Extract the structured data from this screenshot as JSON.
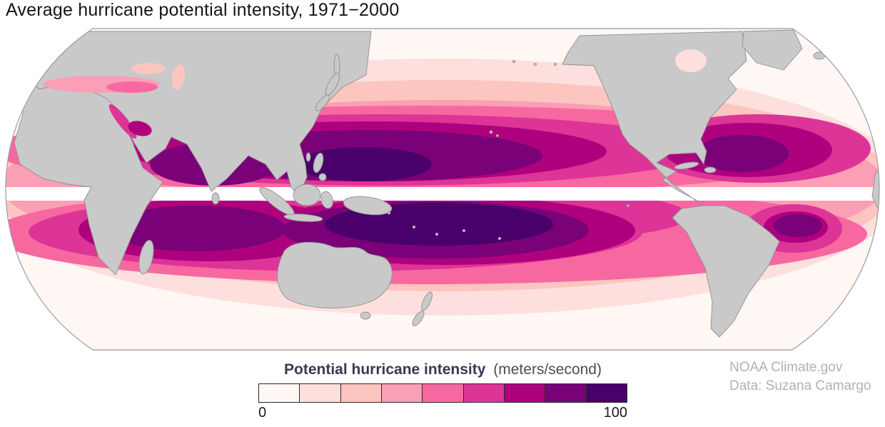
{
  "page": {
    "title": "Average hurricane potential intensity, 1971−2000"
  },
  "legend": {
    "title": "Potential hurricane intensity",
    "units": "(meters/second)",
    "min": "0",
    "max": "100"
  },
  "attribution": {
    "line1": "NOAA Climate.gov",
    "line2": "Data: Suzana Camargo"
  },
  "map": {
    "land_color": "#c9c9c9",
    "land_outline": "#8f8f8f",
    "equator_band_color": "#ffffff",
    "outline_color": "#9a9aa0"
  },
  "chart_data": {
    "type": "heatmap",
    "title": "Average hurricane potential intensity, 1971−2000",
    "variable": "Potential hurricane intensity",
    "units": "meters/second",
    "period": "1971−2000",
    "map_style": "filled-contour world map, Robinson-style projection, Pacific-centered",
    "scale": {
      "min": 0,
      "max": 100,
      "tick_labels": [
        "0",
        "100"
      ],
      "n_classes": 9,
      "colors": [
        "#fff7f3",
        "#fde0dd",
        "#fcc5c0",
        "#fa9fb5",
        "#f768a1",
        "#dd3497",
        "#ae017e",
        "#7a0177",
        "#49006a"
      ]
    },
    "features": [
      "Highest potential intensity (darkest purple, approaching 100 m/s) over the tropical western North Pacific and the tropical South Pacific / eastern Indian Ocean",
      "High values (magenta to purple) across the tropical North Atlantic, Caribbean and Gulf of Mexico",
      "High values in the Arabian Sea, Bay of Bengal, Red Sea and Persian Gulf",
      "Narrow white band with no data along the equator",
      "Values fall toward 0 (pale pink to white) at higher latitudes and over the Southern Ocean"
    ]
  }
}
